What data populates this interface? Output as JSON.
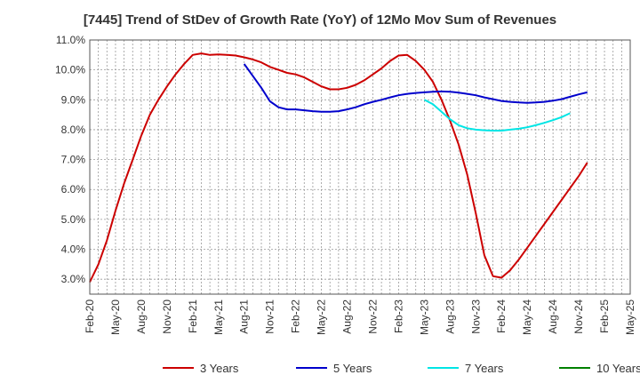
{
  "chart_data": {
    "type": "line",
    "title": "[7445]  Trend of StDev of Growth Rate (YoY) of 12Mo Mov Sum of Revenues",
    "xlabel": "",
    "ylabel": "",
    "ylim": [
      2.5,
      11.0
    ],
    "y_ticks": [
      3.0,
      4.0,
      5.0,
      6.0,
      7.0,
      8.0,
      9.0,
      10.0,
      11.0
    ],
    "y_tick_labels": [
      "3.0%",
      "4.0%",
      "5.0%",
      "6.0%",
      "7.0%",
      "8.0%",
      "9.0%",
      "10.0%",
      "11.0%"
    ],
    "x_tick_labels": [
      "Feb-20",
      "May-20",
      "Aug-20",
      "Nov-20",
      "Feb-21",
      "May-21",
      "Aug-21",
      "Nov-21",
      "Feb-22",
      "May-22",
      "Aug-22",
      "Nov-22",
      "Feb-23",
      "May-23",
      "Aug-23",
      "Nov-23",
      "Feb-24",
      "May-24",
      "Aug-24",
      "Nov-24",
      "Feb-25",
      "May-25"
    ],
    "grid": true,
    "legend_position": "bottom",
    "series": [
      {
        "name": "3 Years",
        "color": "#cc0000",
        "points": [
          [
            0,
            2.9
          ],
          [
            1,
            3.5
          ],
          [
            2,
            4.3
          ],
          [
            3,
            5.3
          ],
          [
            4,
            6.2
          ],
          [
            5,
            7.0
          ],
          [
            6,
            7.8
          ],
          [
            7,
            8.5
          ],
          [
            8,
            9.0
          ],
          [
            9,
            9.45
          ],
          [
            10,
            9.85
          ],
          [
            11,
            10.2
          ],
          [
            12,
            10.5
          ],
          [
            13,
            10.55
          ],
          [
            14,
            10.5
          ],
          [
            15,
            10.52
          ],
          [
            16,
            10.5
          ],
          [
            17,
            10.48
          ],
          [
            18,
            10.42
          ],
          [
            19,
            10.35
          ],
          [
            20,
            10.25
          ],
          [
            21,
            10.1
          ],
          [
            22,
            10.0
          ],
          [
            23,
            9.9
          ],
          [
            24,
            9.85
          ],
          [
            25,
            9.75
          ],
          [
            26,
            9.6
          ],
          [
            27,
            9.45
          ],
          [
            28,
            9.35
          ],
          [
            29,
            9.35
          ],
          [
            30,
            9.4
          ],
          [
            31,
            9.5
          ],
          [
            32,
            9.65
          ],
          [
            33,
            9.85
          ],
          [
            34,
            10.05
          ],
          [
            35,
            10.3
          ],
          [
            36,
            10.48
          ],
          [
            37,
            10.5
          ],
          [
            38,
            10.3
          ],
          [
            39,
            10.0
          ],
          [
            40,
            9.6
          ],
          [
            41,
            9.0
          ],
          [
            42,
            8.3
          ],
          [
            43,
            7.5
          ],
          [
            44,
            6.5
          ],
          [
            45,
            5.2
          ],
          [
            46,
            3.8
          ],
          [
            47,
            3.1
          ],
          [
            48,
            3.05
          ],
          [
            49,
            3.3
          ],
          [
            50,
            3.65
          ],
          [
            51,
            4.05
          ],
          [
            52,
            4.45
          ],
          [
            53,
            4.85
          ],
          [
            54,
            5.25
          ],
          [
            55,
            5.65
          ],
          [
            56,
            6.05
          ],
          [
            57,
            6.45
          ],
          [
            58,
            6.9
          ]
        ]
      },
      {
        "name": "5 Years",
        "color": "#0000cc",
        "points": [
          [
            18,
            10.2
          ],
          [
            19,
            9.8
          ],
          [
            20,
            9.4
          ],
          [
            21,
            8.95
          ],
          [
            22,
            8.75
          ],
          [
            23,
            8.68
          ],
          [
            24,
            8.68
          ],
          [
            25,
            8.65
          ],
          [
            26,
            8.62
          ],
          [
            27,
            8.6
          ],
          [
            28,
            8.6
          ],
          [
            29,
            8.62
          ],
          [
            30,
            8.68
          ],
          [
            31,
            8.75
          ],
          [
            32,
            8.85
          ],
          [
            33,
            8.93
          ],
          [
            34,
            9.0
          ],
          [
            35,
            9.08
          ],
          [
            36,
            9.15
          ],
          [
            37,
            9.2
          ],
          [
            38,
            9.23
          ],
          [
            39,
            9.25
          ],
          [
            40,
            9.27
          ],
          [
            41,
            9.28
          ],
          [
            42,
            9.27
          ],
          [
            43,
            9.24
          ],
          [
            44,
            9.2
          ],
          [
            45,
            9.15
          ],
          [
            46,
            9.08
          ],
          [
            47,
            9.02
          ],
          [
            48,
            8.96
          ],
          [
            49,
            8.93
          ],
          [
            50,
            8.91
          ],
          [
            51,
            8.9
          ],
          [
            52,
            8.91
          ],
          [
            53,
            8.93
          ],
          [
            54,
            8.97
          ],
          [
            55,
            9.02
          ],
          [
            56,
            9.1
          ],
          [
            57,
            9.18
          ],
          [
            58,
            9.25
          ]
        ]
      },
      {
        "name": "7 Years",
        "color": "#00e5e5",
        "points": [
          [
            39,
            9.0
          ],
          [
            40,
            8.85
          ],
          [
            41,
            8.6
          ],
          [
            42,
            8.35
          ],
          [
            43,
            8.15
          ],
          [
            44,
            8.05
          ],
          [
            45,
            8.0
          ],
          [
            46,
            7.98
          ],
          [
            47,
            7.97
          ],
          [
            48,
            7.97
          ],
          [
            49,
            8.0
          ],
          [
            50,
            8.03
          ],
          [
            51,
            8.08
          ],
          [
            52,
            8.15
          ],
          [
            53,
            8.23
          ],
          [
            54,
            8.32
          ],
          [
            55,
            8.42
          ],
          [
            56,
            8.55
          ]
        ]
      },
      {
        "name": "10 Years",
        "color": "#008000",
        "points": []
      }
    ]
  }
}
